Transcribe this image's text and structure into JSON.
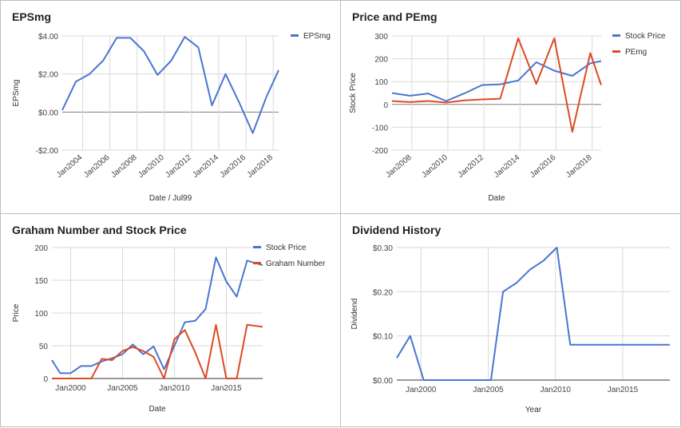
{
  "colors": {
    "blue": "#4a76d1",
    "red": "#dc4b24",
    "grid": "#d9d9d9",
    "zero": "#7f7f7f"
  },
  "chart_data": [
    {
      "type": "line",
      "title": "EPSmg",
      "xlabel": "Date / Jul99",
      "ylabel": "EPSmg",
      "x_range": [
        2002.5,
        2018.4
      ],
      "ylim": [
        -2,
        4
      ],
      "y_ticks": [
        -2,
        0,
        2,
        4
      ],
      "y_tick_labels": [
        "-$2.00",
        "$0.00",
        "$2.00",
        "$4.00"
      ],
      "x_ticks": [
        2004,
        2006,
        2008,
        2010,
        2012,
        2014,
        2016,
        2018
      ],
      "x_tick_labels": [
        "Jan2004",
        "Jan2006",
        "Jan2008",
        "Jan2010",
        "Jan2012",
        "Jan2014",
        "Jan2016",
        "Jan2018"
      ],
      "x_tick_rotate": true,
      "grid": true,
      "legend": "right",
      "series": [
        {
          "name": "EPSmg",
          "color": "#4a76d1",
          "x": [
            2002.5,
            2003.5,
            2004.5,
            2005.5,
            2006.5,
            2007.5,
            2008.5,
            2009.5,
            2010.5,
            2011.5,
            2012.5,
            2013.5,
            2014.5,
            2015.5,
            2016.5,
            2017.5,
            2018.4
          ],
          "y": [
            0.1,
            1.6,
            2.0,
            2.7,
            3.9,
            3.9,
            3.2,
            1.95,
            2.7,
            3.95,
            3.4,
            0.35,
            2.0,
            0.5,
            -1.1,
            0.8,
            2.2
          ]
        }
      ]
    },
    {
      "type": "line",
      "title": "Price and PEmg",
      "xlabel": "Date",
      "ylabel": "Stock Price",
      "x_range": [
        2006.9,
        2018.5
      ],
      "ylim": [
        -200,
        300
      ],
      "y_ticks": [
        -200,
        -100,
        0,
        100,
        200,
        300
      ],
      "y_tick_labels": [
        "-200",
        "-100",
        "0",
        "100",
        "200",
        "300"
      ],
      "x_ticks": [
        2008,
        2010,
        2012,
        2014,
        2016,
        2018
      ],
      "x_tick_labels": [
        "Jan2008",
        "Jan2010",
        "Jan2012",
        "Jan2014",
        "Jan2016",
        "Jan2018"
      ],
      "x_tick_rotate": true,
      "grid": true,
      "legend": "right",
      "series": [
        {
          "name": "Stock Price",
          "color": "#4a76d1",
          "x": [
            2006.9,
            2007.9,
            2008.9,
            2009.9,
            2010.9,
            2011.9,
            2012.9,
            2013.9,
            2014.9,
            2015.9,
            2016.9,
            2017.9,
            2018.5
          ],
          "y": [
            50,
            38,
            48,
            15,
            48,
            85,
            88,
            105,
            185,
            148,
            125,
            180,
            190
          ]
        },
        {
          "name": "PEmg",
          "color": "#dc4b24",
          "x": [
            2006.9,
            2007.9,
            2008.9,
            2009.9,
            2010.9,
            2011.9,
            2012.9,
            2013.9,
            2014.9,
            2015.9,
            2016.9,
            2017.9,
            2018.5
          ],
          "y": [
            15,
            10,
            15,
            8,
            18,
            22,
            25,
            290,
            90,
            290,
            -120,
            225,
            85
          ]
        }
      ]
    },
    {
      "type": "line",
      "title": "Graham Number and Stock Price",
      "xlabel": "Date",
      "ylabel": "Price",
      "x_range": [
        1998.2,
        2018.5
      ],
      "ylim": [
        0,
        200
      ],
      "y_ticks": [
        0,
        50,
        100,
        150,
        200
      ],
      "y_tick_labels": [
        "0",
        "50",
        "100",
        "150",
        "200"
      ],
      "x_ticks": [
        2000,
        2005,
        2010,
        2015
      ],
      "x_tick_labels": [
        "Jan2000",
        "Jan2005",
        "Jan2010",
        "Jan2015"
      ],
      "x_tick_rotate": false,
      "grid": true,
      "legend": "right",
      "series": [
        {
          "name": "Stock Price",
          "color": "#4a76d1",
          "x": [
            1998.2,
            1999,
            2000,
            2001,
            2002,
            2003,
            2004,
            2005,
            2006,
            2007,
            2008,
            2009,
            2010,
            2011,
            2012,
            2013,
            2014,
            2015,
            2016,
            2017,
            2018.5
          ],
          "y": [
            28,
            8,
            8,
            19,
            19,
            26,
            31,
            37,
            52,
            37,
            49,
            14,
            50,
            86,
            88,
            106,
            185,
            148,
            125,
            180,
            173
          ]
        },
        {
          "name": "Graham Number",
          "color": "#dc4b24",
          "x": [
            1998.2,
            1999,
            2000,
            2001,
            2002,
            2003,
            2004,
            2005,
            2006,
            2007,
            2008,
            2009,
            2010,
            2011,
            2012,
            2013,
            2014,
            2015,
            2016,
            2017,
            2018.5
          ],
          "y": [
            0,
            0,
            0,
            0,
            0,
            30,
            28,
            42,
            48,
            42,
            33,
            0,
            60,
            74,
            40,
            0,
            82,
            0,
            0,
            82,
            79
          ]
        }
      ]
    },
    {
      "type": "line",
      "title": "Dividend History",
      "xlabel": "Year",
      "ylabel": "Dividend",
      "x_range": [
        1998.2,
        2018.5
      ],
      "ylim": [
        0,
        0.3
      ],
      "y_ticks": [
        0,
        0.1,
        0.2,
        0.3
      ],
      "y_tick_labels": [
        "$0.00",
        "$0.10",
        "$0.20",
        "$0.30"
      ],
      "x_ticks": [
        2000,
        2005,
        2010,
        2015
      ],
      "x_tick_labels": [
        "Jan2000",
        "Jan2005",
        "Jan2010",
        "Jan2015"
      ],
      "x_tick_rotate": false,
      "grid": true,
      "legend": "none",
      "series": [
        {
          "color": "#4a76d1",
          "x": [
            1998.2,
            1999.2,
            2000.2,
            2001,
            2002,
            2003,
            2004,
            2005.2,
            2006.1,
            2007.1,
            2008.1,
            2009.1,
            2010.1,
            2011.1,
            2012,
            2013,
            2014,
            2015,
            2016,
            2017,
            2018.5
          ],
          "y": [
            0.05,
            0.1,
            0,
            0,
            0,
            0,
            0,
            0,
            0.2,
            0.22,
            0.25,
            0.27,
            0.3,
            0.08,
            0.08,
            0.08,
            0.08,
            0.08,
            0.08,
            0.08,
            0.08
          ]
        }
      ]
    }
  ]
}
